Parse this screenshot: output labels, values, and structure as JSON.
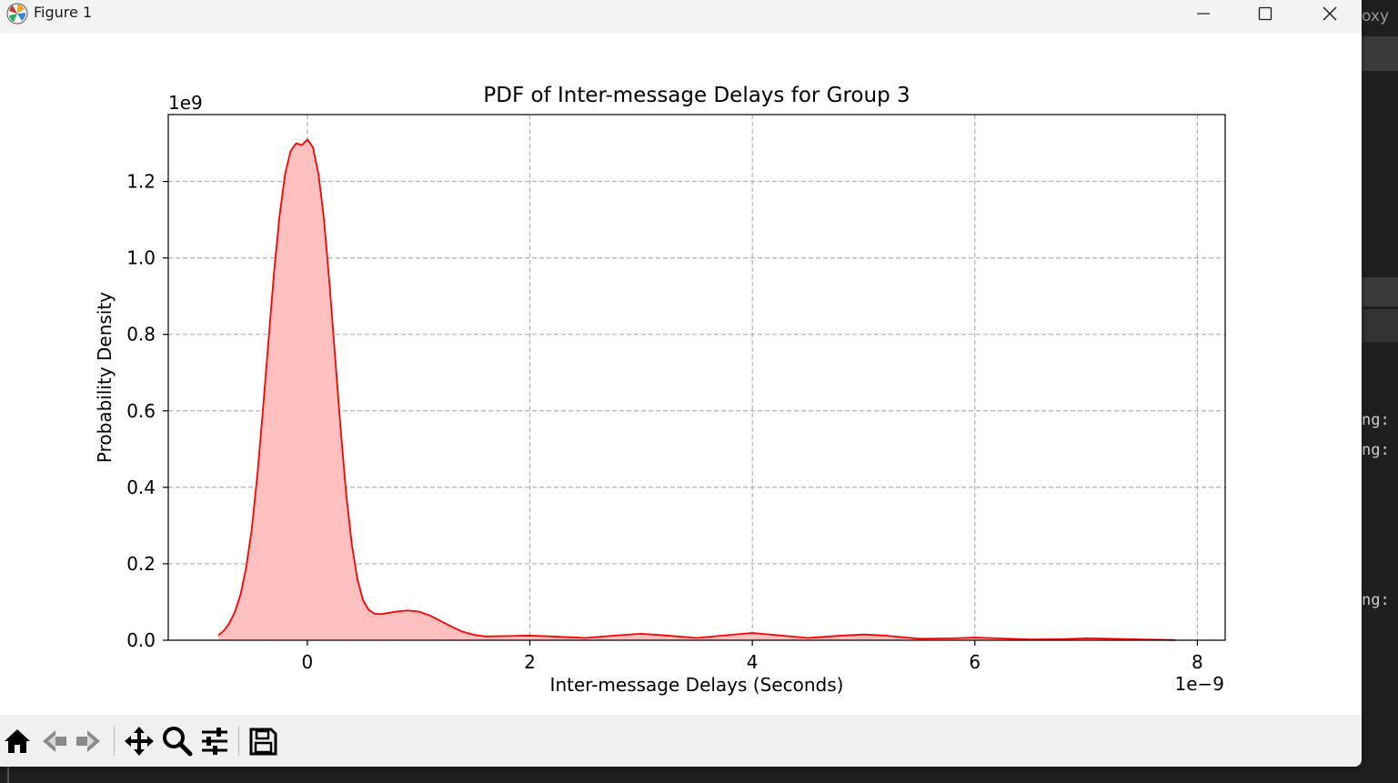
{
  "window": {
    "title": "Figure 1",
    "controls": {
      "minimize": "minimize",
      "maximize": "maximize",
      "close": "close"
    }
  },
  "background_app": {
    "fragments": [
      "oxy",
      "ng:",
      "ng:",
      "ng:"
    ]
  },
  "toolbar": {
    "icons": [
      "home-icon",
      "back-arrow-icon",
      "forward-arrow-icon",
      "pan-move-icon",
      "zoom-magnifier-icon",
      "configure-subplots-icon",
      "save-floppy-icon"
    ]
  },
  "chart_data": {
    "type": "area",
    "title": "PDF of Inter-message Delays for Group 3",
    "xlabel": "Inter-message Delays (Seconds)",
    "ylabel": "Probability Density",
    "x_offset_label": "1e−9",
    "y_offset_label": "1e9",
    "xlim": [
      -1.25,
      8.25
    ],
    "ylim": [
      0,
      1.375
    ],
    "xticks": [
      0,
      2,
      4,
      6,
      8
    ],
    "xtick_labels": [
      "0",
      "2",
      "4",
      "6",
      "8"
    ],
    "yticks": [
      0.0,
      0.2,
      0.4,
      0.6,
      0.8,
      1.0,
      1.2
    ],
    "ytick_labels": [
      "0.0",
      "0.2",
      "0.4",
      "0.6",
      "0.8",
      "1.0",
      "1.2"
    ],
    "grid": true,
    "grid_style": "dashed",
    "line_color": "#ff0000",
    "fill_color": "#ffc0c0",
    "series": [
      {
        "x": [
          -0.8,
          -0.75,
          -0.7,
          -0.65,
          -0.6,
          -0.55,
          -0.5,
          -0.45,
          -0.4,
          -0.35,
          -0.3,
          -0.25,
          -0.2,
          -0.15,
          -0.1,
          -0.05,
          0.0,
          0.05,
          0.1,
          0.15,
          0.2,
          0.25,
          0.3,
          0.35,
          0.4,
          0.45,
          0.5,
          0.55,
          0.6,
          0.65,
          0.7,
          0.8,
          0.9,
          1.0,
          1.1,
          1.2,
          1.3,
          1.4,
          1.5,
          1.6,
          1.8,
          2.0,
          2.2,
          2.5,
          2.8,
          3.0,
          3.2,
          3.5,
          3.8,
          4.0,
          4.2,
          4.5,
          4.8,
          5.0,
          5.2,
          5.5,
          5.8,
          6.0,
          6.2,
          6.5,
          6.8,
          7.0,
          7.2,
          7.5,
          7.8
        ],
        "y": [
          0.013,
          0.025,
          0.045,
          0.075,
          0.12,
          0.19,
          0.29,
          0.43,
          0.6,
          0.78,
          0.96,
          1.11,
          1.22,
          1.28,
          1.3,
          1.295,
          1.31,
          1.29,
          1.22,
          1.1,
          0.93,
          0.74,
          0.55,
          0.38,
          0.25,
          0.16,
          0.105,
          0.08,
          0.07,
          0.068,
          0.07,
          0.075,
          0.078,
          0.075,
          0.065,
          0.05,
          0.035,
          0.022,
          0.014,
          0.01,
          0.011,
          0.012,
          0.01,
          0.006,
          0.013,
          0.017,
          0.013,
          0.006,
          0.014,
          0.019,
          0.014,
          0.006,
          0.012,
          0.015,
          0.012,
          0.004,
          0.005,
          0.007,
          0.005,
          0.002,
          0.003,
          0.005,
          0.004,
          0.002,
          0.0005
        ]
      }
    ]
  }
}
